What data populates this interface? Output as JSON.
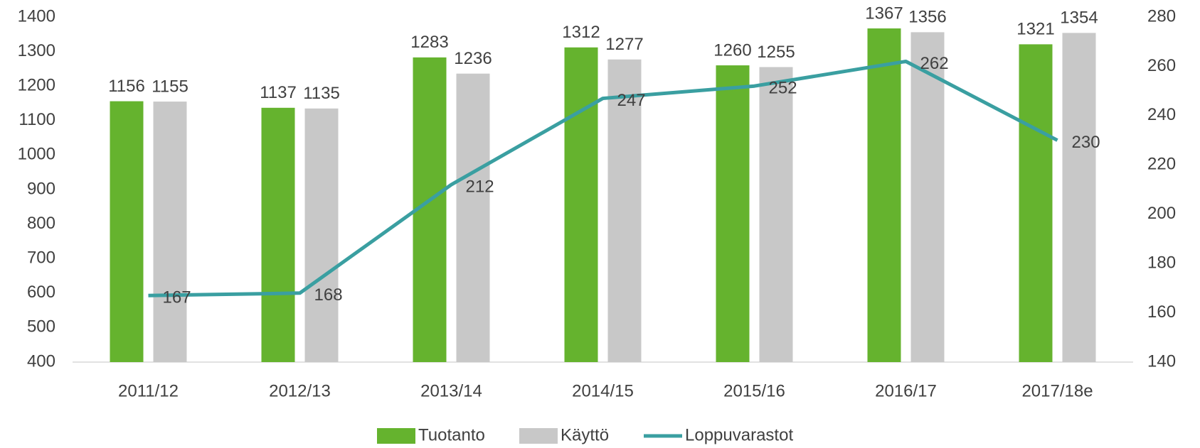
{
  "chart_data": {
    "type": "bar",
    "categories": [
      "2011/12",
      "2012/13",
      "2013/14",
      "2014/15",
      "2015/16",
      "2016/17",
      "2017/18e"
    ],
    "series": [
      {
        "name": "Tuotanto",
        "type": "bar",
        "color": "#65b32e",
        "values": [
          1156,
          1137,
          1283,
          1312,
          1260,
          1367,
          1321
        ]
      },
      {
        "name": "Käyttö",
        "type": "bar",
        "color": "#c8c8c8",
        "values": [
          1155,
          1135,
          1236,
          1277,
          1255,
          1356,
          1354
        ]
      },
      {
        "name": "Loppuvarastot",
        "type": "line",
        "axis": "y2",
        "color": "#3a9fa1",
        "values": [
          167,
          168,
          212,
          247,
          252,
          262,
          230
        ]
      }
    ],
    "ylim": [
      400,
      1400
    ],
    "yticks": [
      400,
      500,
      600,
      700,
      800,
      900,
      1000,
      1100,
      1200,
      1300,
      1400
    ],
    "y2lim": [
      140,
      280
    ],
    "y2ticks": [
      140,
      160,
      180,
      200,
      220,
      240,
      260,
      280
    ],
    "legend": "bottom"
  }
}
